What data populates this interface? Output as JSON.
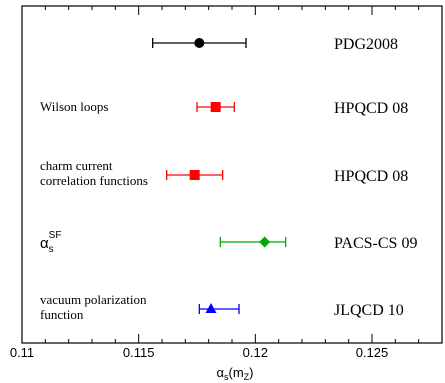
{
  "chart_data": {
    "type": "scatter",
    "title": "",
    "xlabel": "α_s(m_Z)",
    "xlabel_main": "α",
    "xlabel_sub": "s",
    "xlabel_arg": "(m",
    "xlabel_arg_sub": "Z",
    "xlabel_close": ")",
    "ylabel": "",
    "xlim": [
      0.11,
      0.128
    ],
    "x_ticks": [
      {
        "value": 0.11,
        "label": "0.11"
      },
      {
        "value": 0.115,
        "label": "0.115"
      },
      {
        "value": 0.12,
        "label": "0.12"
      },
      {
        "value": 0.125,
        "label": "0.125"
      }
    ],
    "minor_tick_step": 0.001,
    "grid": false,
    "points": [
      {
        "group": "PDG2008",
        "method": "",
        "x": 0.1176,
        "xerr_low": 0.1156,
        "xerr_high": 0.1196,
        "marker": "circle",
        "color": "#000000"
      },
      {
        "group": "HPQCD 08",
        "method": "Wilson loops",
        "x": 0.1183,
        "xerr_low": 0.1175,
        "xerr_high": 0.1191,
        "marker": "square",
        "color": "#ff0000"
      },
      {
        "group": "HPQCD 08",
        "method_lines": [
          "charm current",
          "correlation functions"
        ],
        "x": 0.1174,
        "xerr_low": 0.1162,
        "xerr_high": 0.1186,
        "marker": "square",
        "color": "#ff0000"
      },
      {
        "group": "PACS-CS 09",
        "method_alpha": {
          "main": "α",
          "sub": "s",
          "sup": "SF"
        },
        "x": 0.1204,
        "xerr_low": 0.1185,
        "xerr_high": 0.1213,
        "marker": "diamond",
        "color": "#00aa00"
      },
      {
        "group": "JLQCD 10",
        "method_lines": [
          "vacuum polarization",
          "function"
        ],
        "x": 0.1181,
        "xerr_low": 0.1176,
        "xerr_high": 0.1193,
        "marker": "triangle",
        "color": "#0000ff"
      }
    ]
  }
}
